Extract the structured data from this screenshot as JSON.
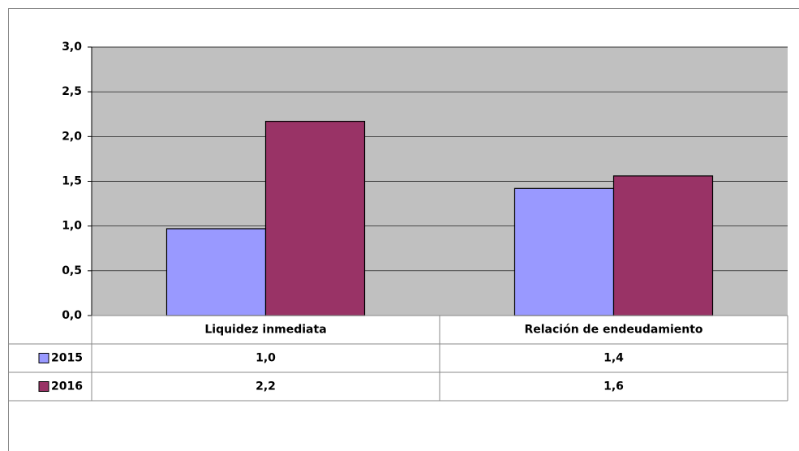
{
  "chart_data": {
    "type": "bar",
    "categories": [
      "Liquidez inmediata",
      "Relación de endeudamiento"
    ],
    "series": [
      {
        "name": "2015",
        "color": "#9999ff",
        "values": [
          0.97,
          1.42
        ],
        "value_labels": [
          "1,0",
          "1,4"
        ]
      },
      {
        "name": "2016",
        "color": "#993366",
        "values": [
          2.17,
          1.56
        ],
        "value_labels": [
          "2,2",
          "1,6"
        ]
      }
    ],
    "ylim": [
      0,
      3
    ],
    "yticks": [
      {
        "value": 0,
        "label": "0,0"
      },
      {
        "value": 0.5,
        "label": "0,5"
      },
      {
        "value": 1,
        "label": "1,0"
      },
      {
        "value": 1.5,
        "label": "1,5"
      },
      {
        "value": 2,
        "label": "2,0"
      },
      {
        "value": 2.5,
        "label": "2,5"
      },
      {
        "value": 3,
        "label": "3,0"
      }
    ],
    "grid": true,
    "background": "#c0c0c0"
  }
}
